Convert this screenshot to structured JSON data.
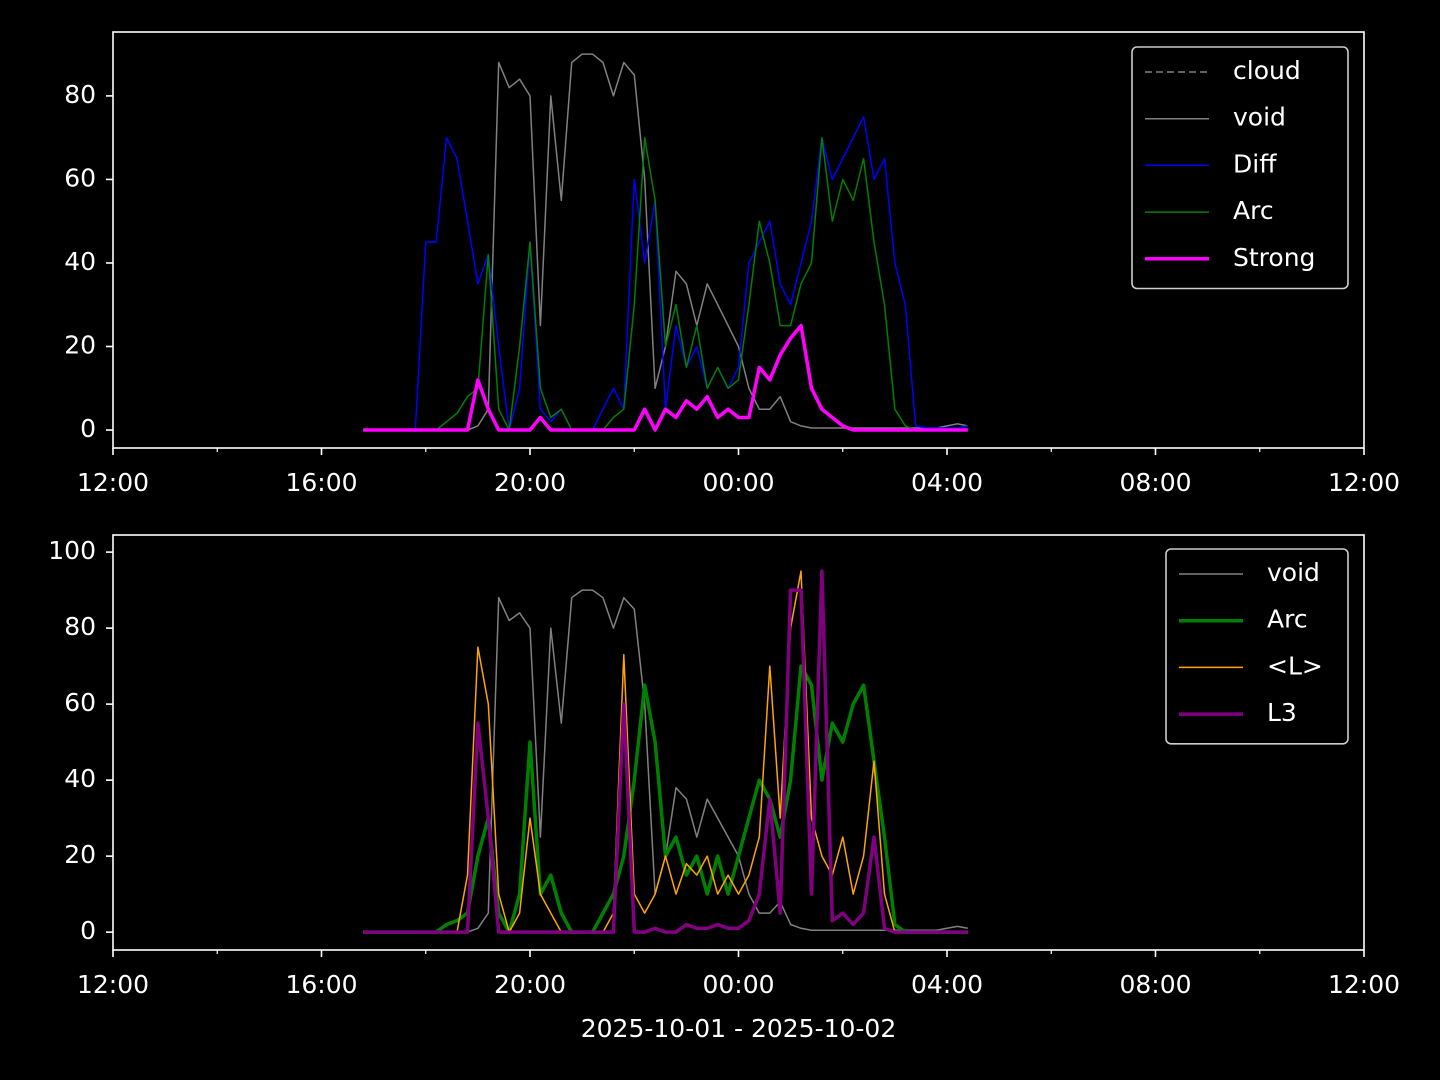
{
  "chart_data": [
    {
      "type": "line",
      "x": [
        16.8,
        17.0,
        17.2,
        17.4,
        17.6,
        17.8,
        18.0,
        18.2,
        18.4,
        18.6,
        18.8,
        19.0,
        19.2,
        19.4,
        19.6,
        19.8,
        20.0,
        20.2,
        20.4,
        20.6,
        20.8,
        21.0,
        21.2,
        21.4,
        21.6,
        21.8,
        22.0,
        22.2,
        22.4,
        22.6,
        22.8,
        23.0,
        23.2,
        23.4,
        23.6,
        23.8,
        24.0,
        24.2,
        24.4,
        24.6,
        24.8,
        25.0,
        25.2,
        25.4,
        25.6,
        25.8,
        26.0,
        26.2,
        26.4,
        26.6,
        26.8,
        27.0,
        27.2,
        27.4,
        27.6,
        27.8,
        28.0,
        28.2,
        28.4
      ],
      "xlim": [
        12,
        36
      ],
      "xticks": [
        {
          "value": 12,
          "label": "12:00"
        },
        {
          "value": 16,
          "label": "16:00"
        },
        {
          "value": 20,
          "label": "20:00"
        },
        {
          "value": 24,
          "label": "00:00"
        },
        {
          "value": 28,
          "label": "04:00"
        },
        {
          "value": 32,
          "label": "08:00"
        },
        {
          "value": 36,
          "label": "12:00"
        }
      ],
      "xminorticks": [
        14,
        18,
        22,
        26,
        30,
        34
      ],
      "ylim": [
        -4.3,
        95.3
      ],
      "yticks": [
        0,
        20,
        40,
        60,
        80
      ],
      "legend": "upper right",
      "series": [
        {
          "name": "cloud",
          "color": "#808080",
          "dashed": true,
          "linewidth": 1.5,
          "values": [
            null,
            null,
            null,
            null,
            null,
            null,
            null,
            null,
            null,
            null,
            null,
            null,
            null,
            null,
            null,
            null,
            null,
            null,
            null,
            null,
            null,
            null,
            null,
            null,
            null,
            null,
            null,
            null,
            null,
            null,
            null,
            null,
            null,
            null,
            null,
            null,
            null,
            null,
            null,
            null,
            null,
            null,
            null,
            null,
            null,
            null,
            null,
            null,
            null,
            null,
            null,
            null,
            null,
            null,
            null,
            null,
            null,
            null,
            null
          ]
        },
        {
          "name": "void",
          "color": "#808080",
          "linewidth": 1.5,
          "values": [
            0,
            0,
            0,
            0,
            0,
            0,
            0,
            0,
            0,
            0,
            0,
            1,
            5,
            88,
            82,
            84,
            80,
            25,
            80,
            55,
            88,
            90,
            90,
            88,
            80,
            88,
            85,
            60,
            10,
            20,
            38,
            35,
            25,
            35,
            30,
            25,
            20,
            10,
            5,
            5,
            8,
            2,
            1,
            0.5,
            0.5,
            0.5,
            0.5,
            0.5,
            0.5,
            0.5,
            0.5,
            0.5,
            0.5,
            0.5,
            0.5,
            0.5,
            1,
            1.5,
            1
          ]
        },
        {
          "name": "Diff",
          "color": "#0000ff",
          "linewidth": 1.5,
          "values": [
            0,
            0,
            0,
            0,
            0,
            0,
            45,
            45,
            70,
            65,
            50,
            35,
            42,
            20,
            0,
            10,
            45,
            5,
            2,
            5,
            0,
            0,
            0,
            5,
            10,
            5,
            60,
            40,
            55,
            5,
            25,
            15,
            20,
            10,
            15,
            10,
            15,
            40,
            45,
            50,
            35,
            30,
            40,
            50,
            70,
            60,
            65,
            70,
            75,
            60,
            65,
            40,
            30,
            1,
            0.5,
            0.5,
            0.5,
            0.5,
            1
          ]
        },
        {
          "name": "Arc",
          "color": "#008000",
          "linewidth": 1.5,
          "values": [
            0,
            0,
            0,
            0,
            0,
            0,
            0,
            0,
            2,
            4,
            8,
            10,
            42,
            5,
            0,
            20,
            45,
            10,
            3,
            5,
            0,
            0,
            0,
            0,
            3,
            5,
            30,
            70,
            55,
            20,
            30,
            15,
            25,
            10,
            15,
            10,
            12,
            30,
            50,
            40,
            25,
            25,
            35,
            40,
            70,
            50,
            60,
            55,
            65,
            45,
            30,
            5,
            1,
            0,
            0,
            0,
            0,
            0,
            0
          ]
        },
        {
          "name": "Strong",
          "color": "#ff00ff",
          "linewidth": 3.5,
          "values": [
            0,
            0,
            0,
            0,
            0,
            0,
            0,
            0,
            0,
            0,
            0,
            12,
            5,
            0,
            0,
            0,
            0,
            3,
            0,
            0,
            0,
            0,
            0,
            0,
            0,
            0,
            0,
            5,
            0,
            5,
            3,
            7,
            5,
            8,
            3,
            5,
            3,
            3,
            15,
            12,
            18,
            22,
            25,
            10,
            5,
            3,
            1,
            0,
            0,
            0,
            0,
            0,
            0,
            0,
            0,
            0,
            0,
            0,
            0
          ]
        }
      ]
    },
    {
      "type": "line",
      "x": [
        16.8,
        17.0,
        17.2,
        17.4,
        17.6,
        17.8,
        18.0,
        18.2,
        18.4,
        18.6,
        18.8,
        19.0,
        19.2,
        19.4,
        19.6,
        19.8,
        20.0,
        20.2,
        20.4,
        20.6,
        20.8,
        21.0,
        21.2,
        21.4,
        21.6,
        21.8,
        22.0,
        22.2,
        22.4,
        22.6,
        22.8,
        23.0,
        23.2,
        23.4,
        23.6,
        23.8,
        24.0,
        24.2,
        24.4,
        24.6,
        24.8,
        25.0,
        25.2,
        25.4,
        25.6,
        25.8,
        26.0,
        26.2,
        26.4,
        26.6,
        26.8,
        27.0,
        27.2,
        27.4,
        27.6,
        27.8,
        28.0,
        28.2,
        28.4
      ],
      "xlim": [
        12,
        36
      ],
      "xticks": [
        {
          "value": 12,
          "label": "12:00"
        },
        {
          "value": 16,
          "label": "16:00"
        },
        {
          "value": 20,
          "label": "20:00"
        },
        {
          "value": 24,
          "label": "00:00"
        },
        {
          "value": 28,
          "label": "04:00"
        },
        {
          "value": 32,
          "label": "08:00"
        },
        {
          "value": 36,
          "label": "12:00"
        }
      ],
      "xminorticks": [
        14,
        18,
        22,
        26,
        30,
        34
      ],
      "x_label": "2025-10-01 - 2025-10-02",
      "ylim": [
        -4.7,
        104.5
      ],
      "yticks": [
        0,
        20,
        40,
        60,
        80,
        100
      ],
      "legend": "upper right",
      "series": [
        {
          "name": "void",
          "color": "#808080",
          "linewidth": 1.5,
          "values": [
            0,
            0,
            0,
            0,
            0,
            0,
            0,
            0,
            0,
            0,
            0,
            1,
            5,
            88,
            82,
            84,
            80,
            25,
            80,
            55,
            88,
            90,
            90,
            88,
            80,
            88,
            85,
            60,
            10,
            20,
            38,
            35,
            25,
            35,
            30,
            25,
            20,
            10,
            5,
            5,
            8,
            2,
            1,
            0.5,
            0.5,
            0.5,
            0.5,
            0.5,
            0.5,
            0.5,
            0.5,
            0.5,
            0.5,
            0.5,
            0.5,
            0.5,
            1,
            1.5,
            1
          ]
        },
        {
          "name": "Arc",
          "color": "#008000",
          "linewidth": 3.5,
          "values": [
            0,
            0,
            0,
            0,
            0,
            0,
            0,
            0,
            2,
            3,
            5,
            20,
            30,
            5,
            0,
            10,
            50,
            10,
            15,
            5,
            0,
            0,
            0,
            5,
            10,
            20,
            40,
            65,
            50,
            20,
            25,
            15,
            20,
            10,
            20,
            10,
            20,
            30,
            40,
            35,
            25,
            40,
            70,
            65,
            40,
            55,
            50,
            60,
            65,
            45,
            25,
            2,
            0,
            0,
            0,
            0,
            0,
            0,
            0
          ]
        },
        {
          "name": "<L>",
          "color": "#ffa500",
          "linewidth": 1.5,
          "values": [
            0,
            0,
            0,
            0,
            0,
            0,
            0,
            0,
            0,
            0,
            15,
            75,
            60,
            10,
            0,
            5,
            30,
            10,
            5,
            0,
            0,
            0,
            0,
            0,
            5,
            73,
            10,
            5,
            10,
            20,
            10,
            18,
            15,
            20,
            10,
            15,
            10,
            15,
            25,
            70,
            30,
            80,
            95,
            30,
            20,
            15,
            25,
            10,
            20,
            45,
            10,
            0,
            0,
            0,
            0,
            0,
            0,
            0,
            0
          ]
        },
        {
          "name": "L3",
          "color": "#800080",
          "linewidth": 3.5,
          "values": [
            0,
            0,
            0,
            0,
            0,
            0,
            0,
            0,
            0,
            0,
            0,
            55,
            30,
            0,
            0,
            0,
            0,
            0,
            0,
            0,
            0,
            0,
            0,
            0,
            0,
            60,
            0,
            0,
            1,
            0,
            0,
            2,
            1,
            1,
            2,
            1,
            1,
            3,
            10,
            35,
            5,
            90,
            90,
            10,
            95,
            3,
            5,
            2,
            5,
            25,
            1,
            0,
            0,
            0,
            0,
            0,
            0,
            0,
            0
          ]
        }
      ]
    }
  ]
}
